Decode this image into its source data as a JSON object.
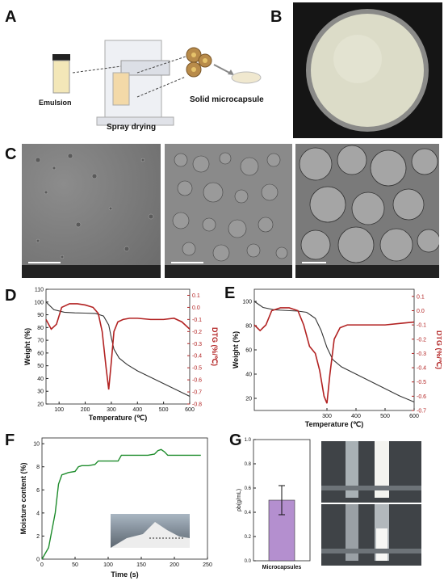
{
  "panels": {
    "A": "A",
    "B": "B",
    "C": "C",
    "D": "D",
    "E": "E",
    "F": "F",
    "G": "G"
  },
  "panelA": {
    "emulsion": "Emulsion",
    "spray_drying": "Spray drying",
    "solid_microcapsule": "Solid microcapsule"
  },
  "colors": {
    "weight": "#333333",
    "dtg": "#b22222",
    "moisture": "#1e8c2c",
    "bar": "#b48fcf"
  },
  "chart_data": [
    {
      "id": "D",
      "type": "line",
      "xlabel": "Temperature (℃)",
      "ylabel": "Weight (%)",
      "y2label": "DTG (%/℃)",
      "xlim": [
        50,
        600
      ],
      "xticks": [
        100,
        200,
        300,
        400,
        500,
        600
      ],
      "ylim": [
        20,
        110
      ],
      "yticks": [
        20,
        30,
        40,
        50,
        60,
        70,
        80,
        90,
        100,
        110
      ],
      "y2lim": [
        -0.8,
        0.15
      ],
      "y2ticks": [
        0.1,
        0.0,
        -0.1,
        -0.2,
        -0.3,
        -0.4,
        -0.5,
        -0.6,
        -0.7,
        -0.8
      ],
      "series": [
        {
          "axis": "left",
          "x": [
            50,
            80,
            120,
            160,
            200,
            240,
            270,
            290,
            300,
            310,
            330,
            360,
            400,
            450,
            500,
            550,
            600
          ],
          "y": [
            100,
            94,
            92,
            91.5,
            91.3,
            91,
            89,
            82,
            72,
            63,
            56,
            51,
            46,
            41,
            36,
            31,
            26
          ]
        },
        {
          "axis": "right",
          "x": [
            50,
            70,
            90,
            110,
            140,
            170,
            200,
            230,
            250,
            265,
            280,
            290,
            300,
            310,
            325,
            345,
            370,
            400,
            450,
            500,
            540,
            570,
            600
          ],
          "y": [
            -0.1,
            -0.18,
            -0.14,
            0.0,
            0.03,
            0.03,
            0.02,
            0.0,
            -0.05,
            -0.2,
            -0.5,
            -0.68,
            -0.45,
            -0.2,
            -0.12,
            -0.1,
            -0.09,
            -0.09,
            -0.1,
            -0.1,
            -0.09,
            -0.12,
            -0.18
          ]
        }
      ]
    },
    {
      "id": "E",
      "type": "line",
      "xlabel": "Temperature (℃)",
      "ylabel": "Weight (%)",
      "y2label": "DTG (%/℃)",
      "xlim": [
        50,
        600
      ],
      "xticks": [
        300,
        400,
        500,
        600
      ],
      "ylim": [
        10,
        110
      ],
      "yticks": [
        20,
        40,
        60,
        80,
        100
      ],
      "y2lim": [
        -0.7,
        0.15
      ],
      "y2ticks": [
        0.1,
        0.0,
        -0.1,
        -0.2,
        -0.3,
        -0.4,
        -0.5,
        -0.6,
        -0.7
      ],
      "series": [
        {
          "axis": "left",
          "x": [
            50,
            80,
            120,
            160,
            200,
            230,
            260,
            280,
            300,
            320,
            350,
            400,
            450,
            500,
            550,
            600
          ],
          "y": [
            100,
            95,
            93,
            92.5,
            92,
            91,
            86,
            76,
            62,
            52,
            46,
            40,
            34,
            28,
            22,
            17
          ]
        },
        {
          "axis": "right",
          "x": [
            50,
            70,
            90,
            110,
            140,
            170,
            200,
            220,
            240,
            260,
            275,
            290,
            300,
            310,
            325,
            345,
            370,
            400,
            450,
            500,
            550,
            600
          ],
          "y": [
            -0.1,
            -0.14,
            -0.1,
            0.0,
            0.02,
            0.02,
            0.0,
            -0.1,
            -0.25,
            -0.3,
            -0.42,
            -0.6,
            -0.65,
            -0.45,
            -0.2,
            -0.12,
            -0.1,
            -0.1,
            -0.1,
            -0.1,
            -0.09,
            -0.08
          ]
        }
      ]
    },
    {
      "id": "F",
      "type": "line",
      "xlabel": "Time (s)",
      "ylabel": "Moisture content (%)",
      "xlim": [
        0,
        250
      ],
      "xticks": [
        0,
        50,
        100,
        150,
        200,
        250
      ],
      "ylim": [
        0,
        10.5
      ],
      "yticks": [
        0,
        2,
        4,
        6,
        8,
        10
      ],
      "series": [
        {
          "axis": "left",
          "x": [
            0,
            10,
            20,
            25,
            30,
            35,
            40,
            50,
            55,
            60,
            70,
            80,
            85,
            90,
            100,
            115,
            120,
            140,
            160,
            170,
            175,
            180,
            185,
            190,
            200,
            220,
            240
          ],
          "y": [
            0,
            1,
            4,
            6.5,
            7.3,
            7.4,
            7.5,
            7.6,
            8.0,
            8.1,
            8.1,
            8.2,
            8.5,
            8.5,
            8.5,
            8.5,
            9.0,
            9.0,
            9.0,
            9.1,
            9.4,
            9.5,
            9.3,
            9.0,
            9.0,
            9.0,
            9.0
          ]
        }
      ]
    },
    {
      "id": "G",
      "type": "bar",
      "categories": [
        "Microcapsules"
      ],
      "values": [
        0.5
      ],
      "error": [
        0.12
      ],
      "ylabel": "ρb(g/mL)",
      "ylim": [
        0,
        1.0
      ],
      "yticks": [
        0.0,
        0.2,
        0.4,
        0.6,
        0.8,
        1.0
      ]
    }
  ]
}
